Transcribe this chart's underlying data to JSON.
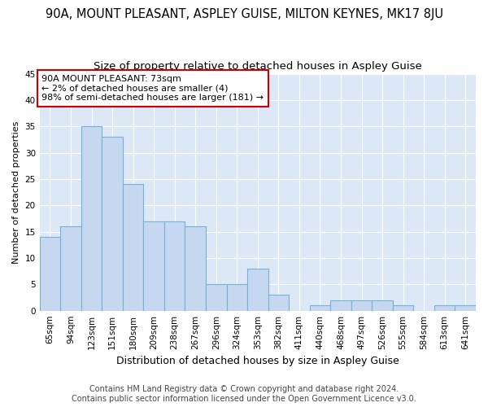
{
  "title": "90A, MOUNT PLEASANT, ASPLEY GUISE, MILTON KEYNES, MK17 8JU",
  "subtitle": "Size of property relative to detached houses in Aspley Guise",
  "xlabel": "Distribution of detached houses by size in Aspley Guise",
  "ylabel": "Number of detached properties",
  "categories": [
    "65sqm",
    "94sqm",
    "123sqm",
    "151sqm",
    "180sqm",
    "209sqm",
    "238sqm",
    "267sqm",
    "296sqm",
    "324sqm",
    "353sqm",
    "382sqm",
    "411sqm",
    "440sqm",
    "468sqm",
    "497sqm",
    "526sqm",
    "555sqm",
    "584sqm",
    "613sqm",
    "641sqm"
  ],
  "values": [
    14,
    16,
    35,
    33,
    24,
    17,
    17,
    16,
    5,
    5,
    8,
    3,
    0,
    1,
    2,
    2,
    2,
    1,
    0,
    1,
    1
  ],
  "bar_color": "#c5d8f0",
  "bar_edge_color": "#7aafd4",
  "annotation_line1": "90A MOUNT PLEASANT: 73sqm",
  "annotation_line2": "← 2% of detached houses are smaller (4)",
  "annotation_line3": "98% of semi-detached houses are larger (181) →",
  "annotation_box_facecolor": "#ffffff",
  "annotation_box_edgecolor": "#cc0000",
  "ylim": [
    0,
    45
  ],
  "yticks": [
    0,
    5,
    10,
    15,
    20,
    25,
    30,
    35,
    40,
    45
  ],
  "footer_line1": "Contains HM Land Registry data © Crown copyright and database right 2024.",
  "footer_line2": "Contains public sector information licensed under the Open Government Licence v3.0.",
  "fig_bg_color": "#ffffff",
  "plot_bg_color": "#dce8f5",
  "grid_color": "#ffffff",
  "title_fontsize": 10.5,
  "subtitle_fontsize": 9.5,
  "xlabel_fontsize": 9,
  "ylabel_fontsize": 8,
  "tick_fontsize": 7.5,
  "annotation_fontsize": 8,
  "footer_fontsize": 7
}
